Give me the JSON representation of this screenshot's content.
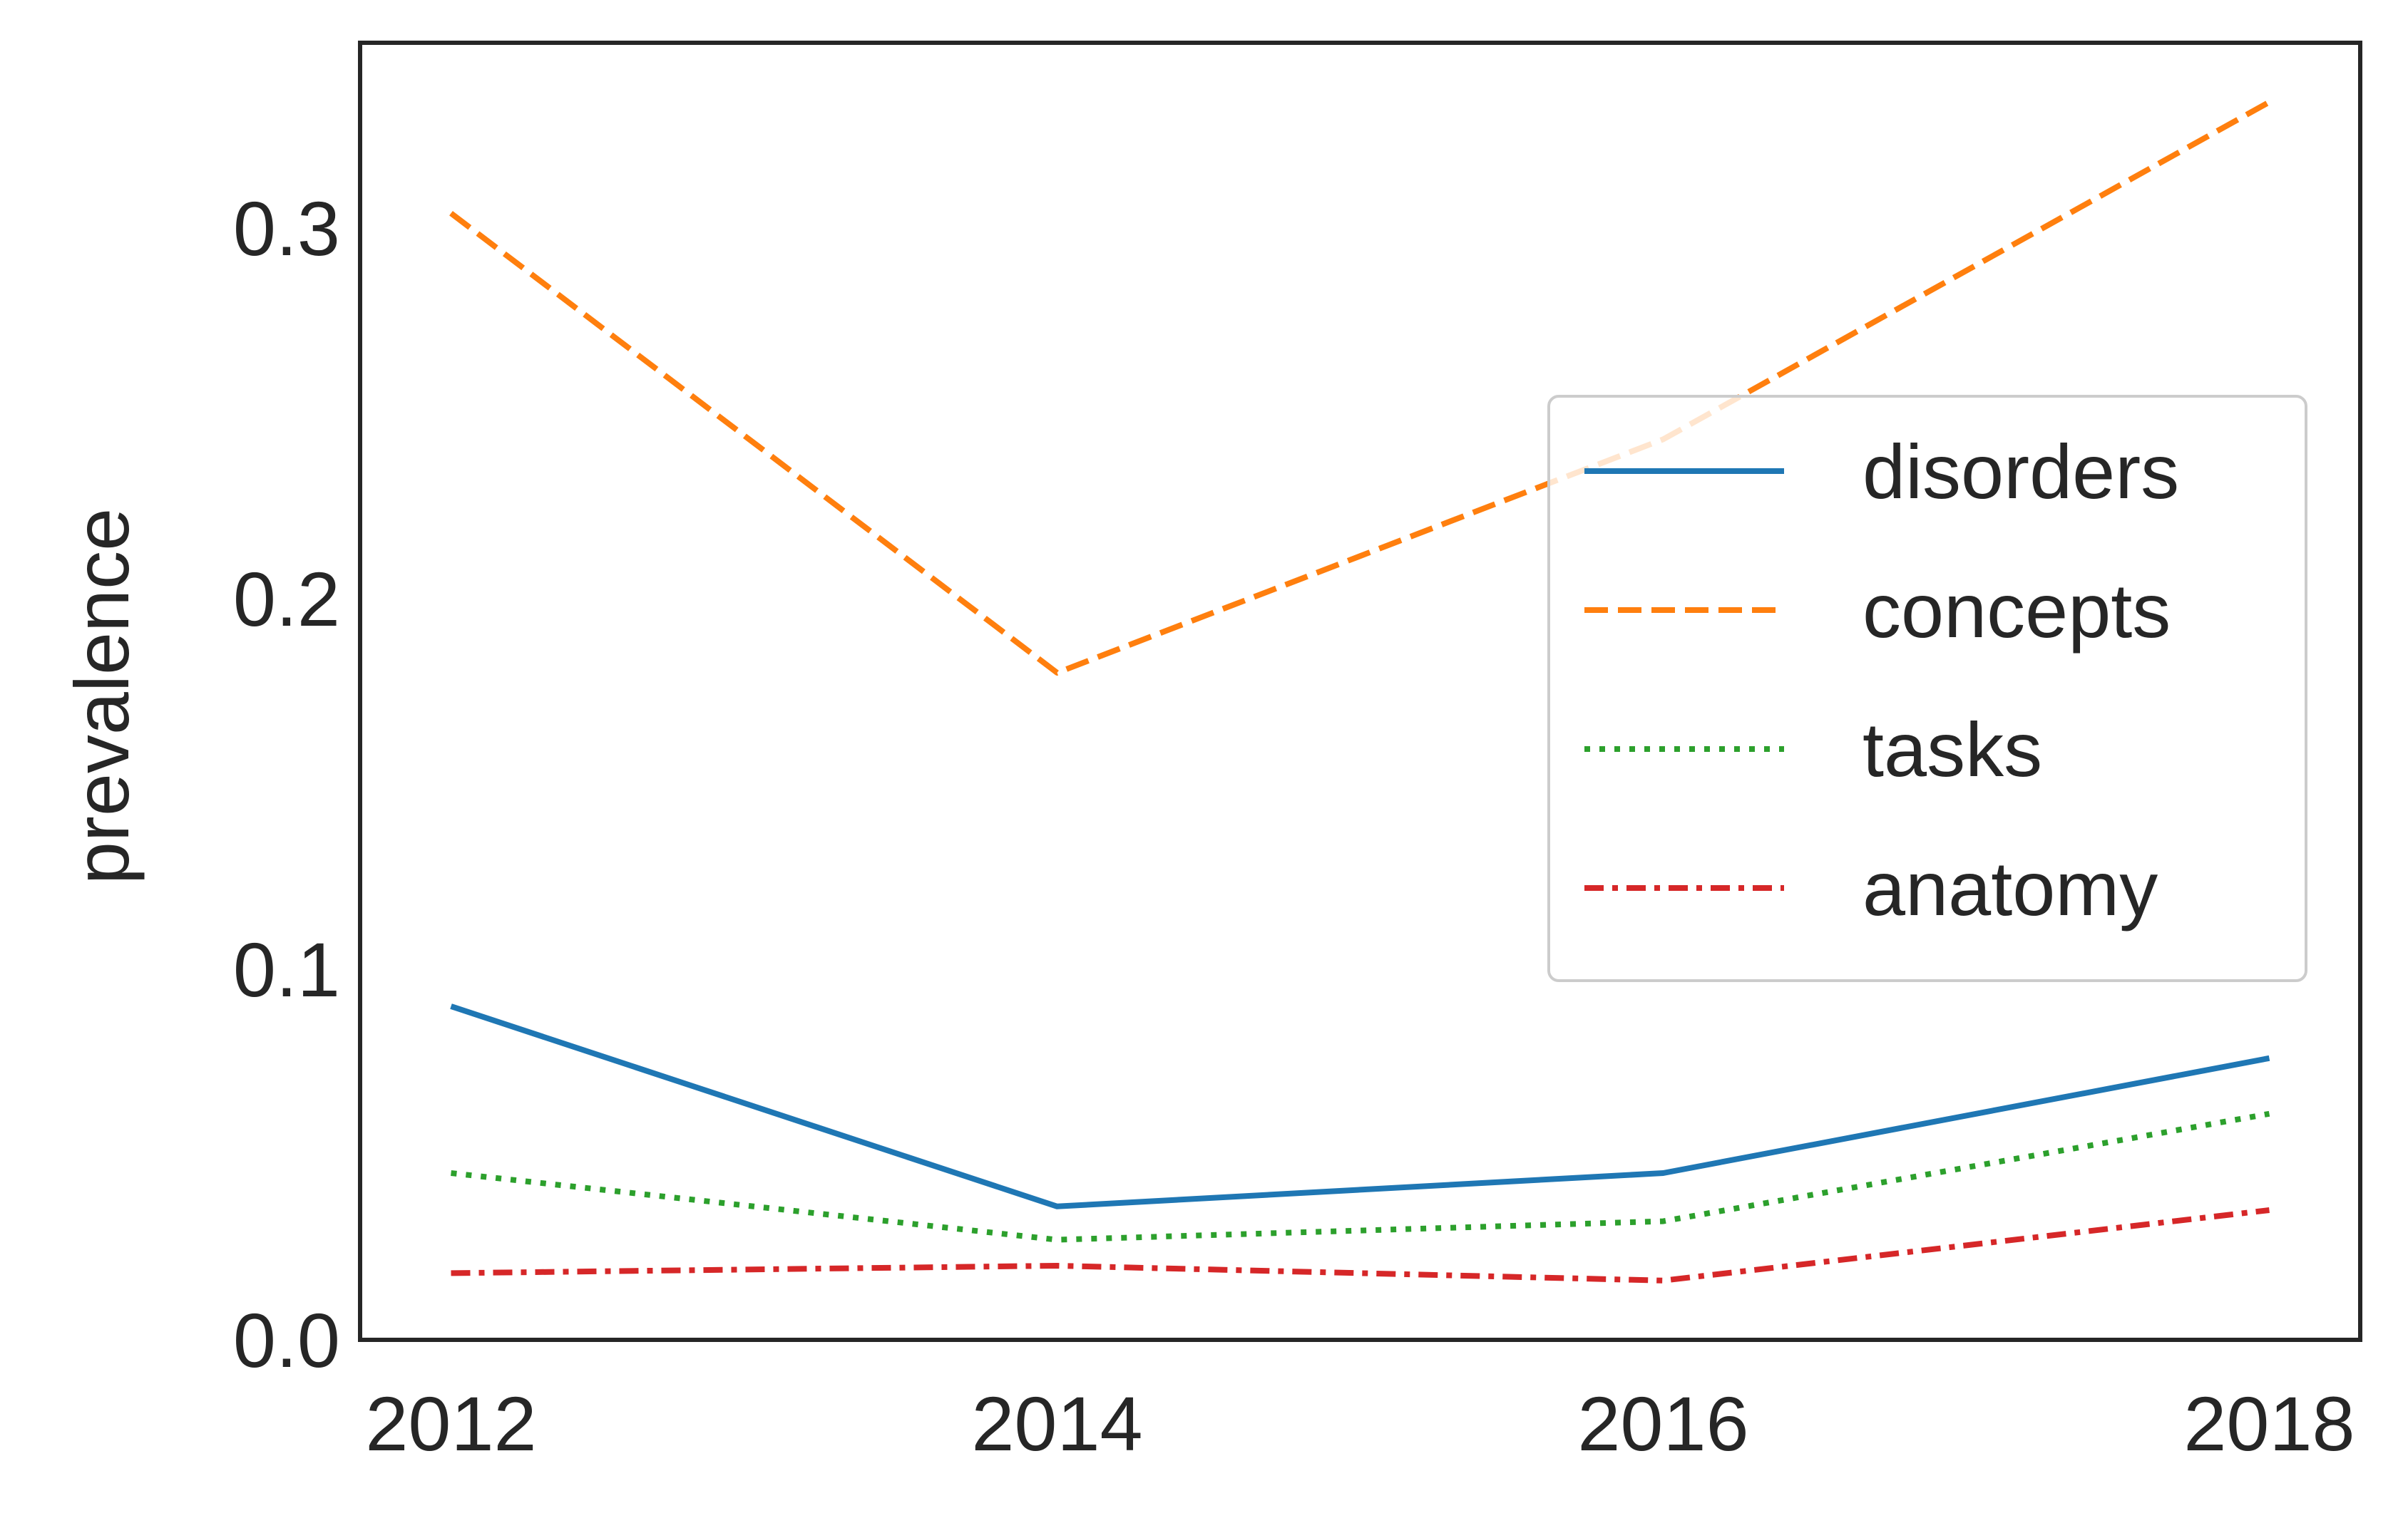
{
  "chart_data": {
    "type": "line",
    "title": "",
    "xlabel": "",
    "ylabel": "prevalence",
    "x": [
      2012,
      2014,
      2016,
      2018
    ],
    "xticks": [
      "2012",
      "2014",
      "2016",
      "2018"
    ],
    "yticks": [
      "0.0",
      "0.1",
      "0.2",
      "0.3"
    ],
    "xlim": [
      2011.7,
      2018.3
    ],
    "ylim": [
      0.0,
      0.35
    ],
    "grid": false,
    "legend_position": "center-right",
    "series": [
      {
        "name": "disorders",
        "values": [
          0.09,
          0.036,
          0.045,
          0.076
        ],
        "color": "#1f77b4",
        "style": "solid"
      },
      {
        "name": "concepts",
        "values": [
          0.304,
          0.18,
          0.243,
          0.334
        ],
        "color": "#ff7f0e",
        "style": "dashed"
      },
      {
        "name": "tasks",
        "values": [
          0.045,
          0.027,
          0.032,
          0.061
        ],
        "color": "#2ca02c",
        "style": "dotted"
      },
      {
        "name": "anatomy",
        "values": [
          0.018,
          0.02,
          0.016,
          0.035
        ],
        "color": "#d62728",
        "style": "dashdot"
      }
    ]
  }
}
